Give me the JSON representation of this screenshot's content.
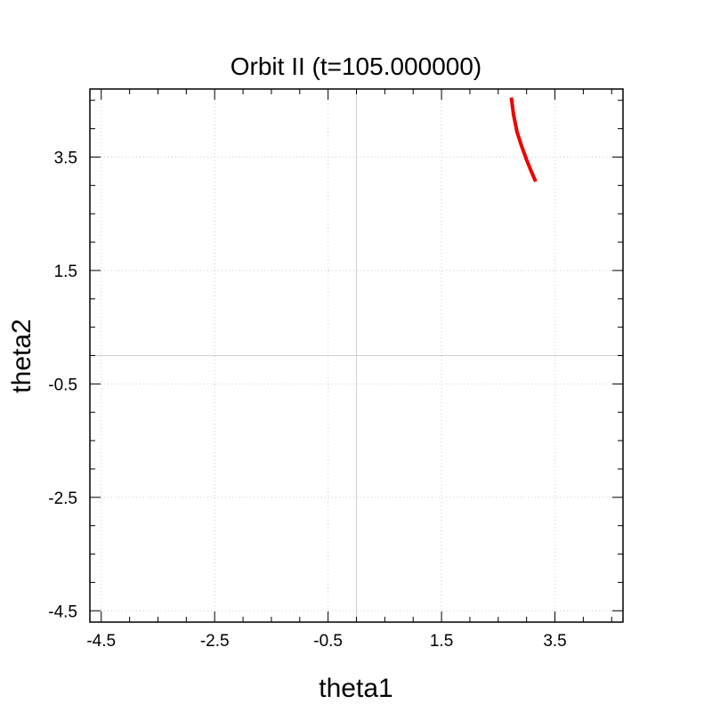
{
  "chart_data": {
    "type": "line",
    "title": "Orbit II (t=105.000000)",
    "xlabel": "theta1",
    "ylabel": "theta2",
    "xlim": [
      -4.7,
      4.7
    ],
    "ylim": [
      -4.7,
      4.7
    ],
    "x_ticks": [
      -4.5,
      -2.5,
      -0.5,
      1.5,
      3.5
    ],
    "y_ticks": [
      -4.5,
      -2.5,
      -0.5,
      1.5,
      3.5
    ],
    "x_tick_labels": [
      "-4.5",
      "-2.5",
      "-0.5",
      "1.5",
      "3.5"
    ],
    "y_tick_labels": [
      "-4.5",
      "-2.5",
      "-0.5",
      "1.5",
      "3.5"
    ],
    "minor_tick_step": 0.5,
    "grid": true,
    "zero_lines": true,
    "series": [
      {
        "color": "#ee0000",
        "points": [
          [
            2.73,
            4.55
          ],
          [
            2.77,
            4.25
          ],
          [
            2.83,
            3.95
          ],
          [
            2.91,
            3.7
          ],
          [
            3.0,
            3.45
          ],
          [
            3.09,
            3.23
          ],
          [
            3.16,
            3.07
          ]
        ]
      }
    ]
  }
}
